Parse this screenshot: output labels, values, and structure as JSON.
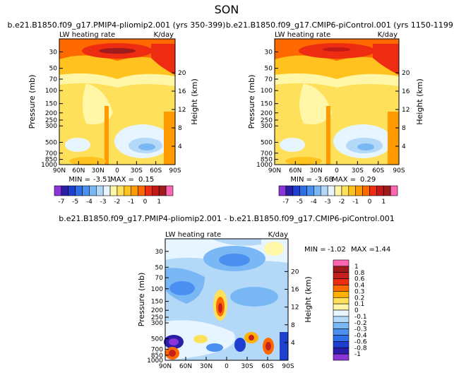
{
  "title": "SON",
  "chart_data": [
    {
      "type": "heatmap",
      "title": "b.e21.B1850.f09_g17.PMIP4-pliomip2.001 (yrs 350-399)",
      "variable": "LW heating rate",
      "units": "K/day",
      "xlabel": "",
      "ylabel": "Pressure (mb)",
      "ylabel_right": "Height (km)",
      "x_ticks": [
        "90N",
        "60N",
        "30N",
        "0",
        "30S",
        "60S",
        "90S"
      ],
      "y_ticks": [
        "1000",
        "850",
        "700",
        "500",
        "300",
        "250",
        "200",
        "150",
        "100",
        "70",
        "50",
        "30"
      ],
      "height_ticks": [
        "20",
        "16",
        "12",
        "8",
        "4"
      ],
      "min_label": "MIN =",
      "min": "-3.51",
      "max_label": "MAX =",
      "max": "0.15",
      "colorbar_labels": [
        "-7",
        "-5",
        "-4",
        "-3",
        "-2",
        "-1",
        "0",
        "1"
      ]
    },
    {
      "type": "heatmap",
      "title": "b.e21.B1850.f09_g17.CMIP6-piControl.001 (yrs 1150-1199)",
      "variable": "LW heating rate",
      "units": "K/day",
      "xlabel": "",
      "ylabel": "Pressure (mb)",
      "ylabel_right": "Height (km)",
      "x_ticks": [
        "90N",
        "60N",
        "30N",
        "0",
        "30S",
        "60S",
        "90S"
      ],
      "y_ticks": [
        "1000",
        "850",
        "700",
        "500",
        "300",
        "250",
        "200",
        "150",
        "100",
        "70",
        "50",
        "30"
      ],
      "height_ticks": [
        "20",
        "16",
        "12",
        "8",
        "4"
      ],
      "min_label": "MIN =",
      "min": "-3.68",
      "max_label": "MAX =",
      "max": "0.29",
      "colorbar_labels": [
        "-7",
        "-5",
        "-4",
        "-3",
        "-2",
        "-1",
        "0",
        "1"
      ]
    },
    {
      "type": "heatmap",
      "title": "b.e21.B1850.f09_g17.PMIP4-pliomip2.001 - b.e21.B1850.f09_g17.CMIP6-piControl.001",
      "variable": "LW heating rate",
      "units": "K/day",
      "xlabel": "",
      "ylabel": "Pressure (mb)",
      "ylabel_right": "Height (km)",
      "x_ticks": [
        "90N",
        "60N",
        "30N",
        "0",
        "30S",
        "60S",
        "90S"
      ],
      "y_ticks": [
        "1000",
        "850",
        "700",
        "500",
        "300",
        "250",
        "200",
        "150",
        "100",
        "70",
        "50",
        "30"
      ],
      "height_ticks": [
        "20",
        "16",
        "12",
        "8",
        "4"
      ],
      "min_label": "MIN =",
      "min": "-1.02",
      "max_label": "MAX =",
      "max": "1.44",
      "colorbar_labels": [
        "1",
        "0.8",
        "0.6",
        "0.4",
        "0.3",
        "0.2",
        "0.1",
        "0",
        "-0.1",
        "-0.2",
        "-0.3",
        "-0.4",
        "-0.6",
        "-0.8",
        "-1"
      ]
    }
  ],
  "colors": {
    "abs_scale": [
      "#8b35d8",
      "#2a1ea8",
      "#1f3fd0",
      "#2d6fe6",
      "#4a90f0",
      "#7ab8f5",
      "#b4d8f8",
      "#e6f5ff",
      "#fff6a8",
      "#ffe05a",
      "#ffc21e",
      "#ff9a00",
      "#ff6a00",
      "#ee2c12",
      "#c21818",
      "#a01c1c",
      "#ff66b2"
    ],
    "diff_scale": [
      "#ff66b2",
      "#9e1a1a",
      "#c42020",
      "#ee2c12",
      "#ff6a00",
      "#ffb000",
      "#ffe05a",
      "#fff6a8",
      "#e6f5ff",
      "#b4d8f8",
      "#7ab8f5",
      "#4a90f0",
      "#2d6fe6",
      "#1f3fd0",
      "#2a1ea8",
      "#8b35d8"
    ]
  }
}
